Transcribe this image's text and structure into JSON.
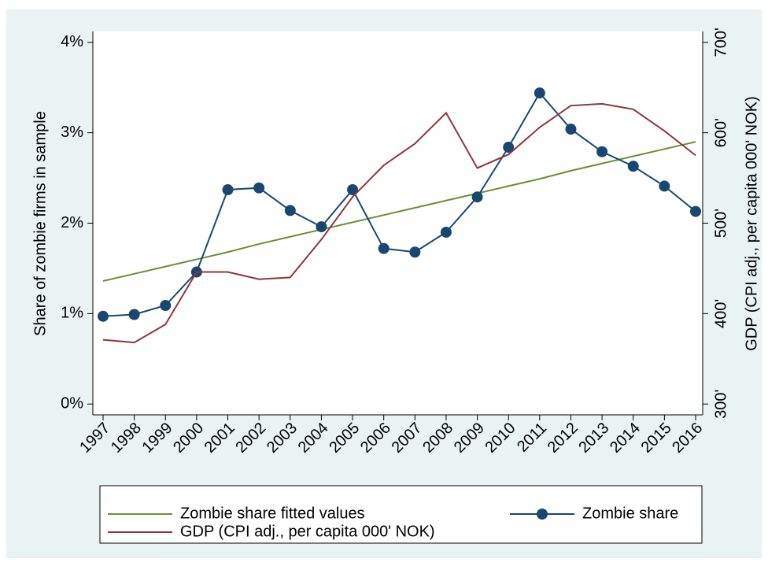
{
  "chart_data": {
    "type": "line",
    "categories": [
      "1997",
      "1998",
      "1999",
      "2000",
      "2001",
      "2002",
      "2003",
      "2004",
      "2005",
      "2006",
      "2007",
      "2008",
      "2009",
      "2010",
      "2011",
      "2012",
      "2013",
      "2014",
      "2015",
      "2016"
    ],
    "y_label": "Share of zombie firms in sample",
    "y2_label": "GDP (CPI adj., per capita 000' NOK)",
    "ylim": [
      -0.12,
      4.12
    ],
    "yticks": [
      {
        "value": 0,
        "label": "0%"
      },
      {
        "value": 1,
        "label": "1%"
      },
      {
        "value": 2,
        "label": "2%"
      },
      {
        "value": 3,
        "label": "3%"
      },
      {
        "value": 4,
        "label": "4%"
      }
    ],
    "y2lim": [
      288,
      712
    ],
    "y2ticks": [
      {
        "value": 300,
        "label": "300'"
      },
      {
        "value": 400,
        "label": "400'"
      },
      {
        "value": 500,
        "label": "500'"
      },
      {
        "value": 600,
        "label": "600'"
      },
      {
        "value": 700,
        "label": "700'"
      }
    ],
    "legend": "bottom",
    "series": [
      {
        "name": "Zombie share fitted values",
        "color": "#6b8e3a",
        "marker": false,
        "values": [
          1.36,
          1.44,
          1.52,
          1.6,
          1.68,
          1.77,
          1.85,
          1.93,
          2.01,
          2.09,
          2.17,
          2.25,
          2.33,
          2.41,
          2.49,
          2.58,
          2.66,
          2.74,
          2.82,
          2.9
        ]
      },
      {
        "name": "Zombie share",
        "color": "#1a476f",
        "marker": true,
        "values": [
          0.97,
          0.99,
          1.09,
          1.46,
          2.37,
          2.39,
          2.14,
          1.96,
          2.37,
          1.72,
          1.68,
          1.9,
          2.29,
          2.84,
          3.44,
          3.04,
          2.79,
          2.63,
          2.41,
          2.13
        ]
      },
      {
        "name": "GDP (CPI adj., per capita 000' NOK)",
        "color": "#90353b",
        "marker": false,
        "axis": "y2",
        "values": [
          371,
          368,
          388,
          446,
          446,
          438,
          440,
          482,
          529,
          564,
          588,
          622,
          561,
          576,
          606,
          630,
          632,
          626,
          602,
          575
        ]
      }
    ]
  }
}
